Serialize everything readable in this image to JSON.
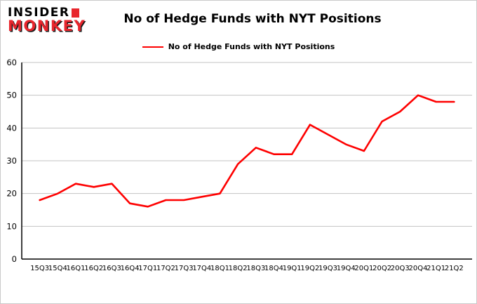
{
  "logo": {
    "line1": "INSIDER",
    "line2": "MONKEY"
  },
  "header": {
    "title": "No of Hedge Funds with NYT Positions"
  },
  "legend": {
    "label": "No of Hedge Funds with NYT Positions",
    "color": "#fe0000"
  },
  "chart_data": {
    "type": "line",
    "title": "No of Hedge Funds with NYT Positions",
    "categories": [
      "15Q3",
      "15Q4",
      "16Q1",
      "16Q2",
      "16Q3",
      "16Q4",
      "17Q1",
      "17Q2",
      "17Q3",
      "17Q4",
      "18Q1",
      "18Q2",
      "18Q3",
      "18Q4",
      "19Q1",
      "19Q2",
      "19Q3",
      "19Q4",
      "20Q1",
      "20Q2",
      "20Q3",
      "20Q4",
      "21Q1",
      "21Q2"
    ],
    "series": [
      {
        "name": "No of Hedge Funds with NYT Positions",
        "color": "#fe0000",
        "values": [
          18,
          20,
          23,
          22,
          23,
          17,
          16,
          18,
          18,
          19,
          20,
          29,
          34,
          32,
          32,
          41,
          38,
          35,
          33,
          42,
          45,
          50,
          48,
          48
        ]
      }
    ],
    "xlabel": "",
    "ylabel": "",
    "ylim": [
      0,
      60
    ],
    "yticks": [
      0,
      10,
      20,
      30,
      40,
      50,
      60
    ],
    "grid": true,
    "grid_color": "#c3c3c3",
    "axis_color": "#000000",
    "legend_position": "top"
  }
}
